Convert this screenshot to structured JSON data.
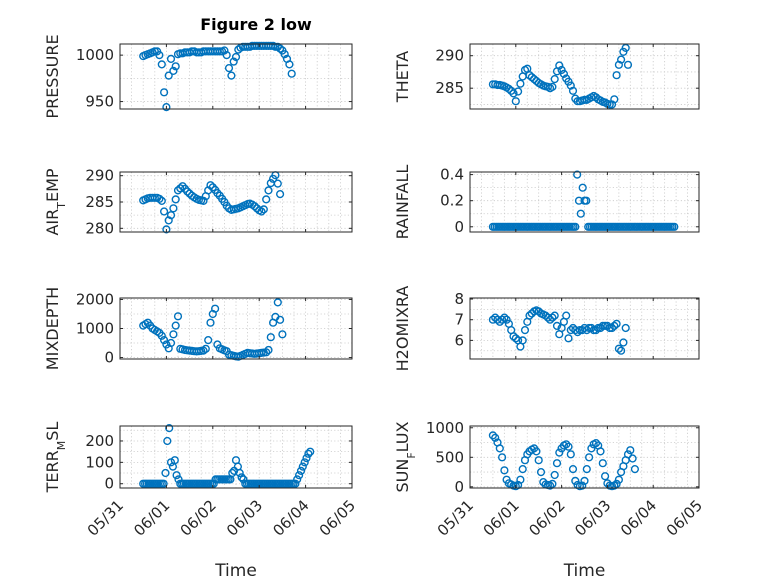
{
  "figure": {
    "title": "Figure 2 low",
    "x_axis_label": "Time",
    "x_tick_labels": [
      "05/31",
      "06/01",
      "06/02",
      "06/03",
      "06/04",
      "06/05"
    ],
    "marker_color": "#0072BD"
  },
  "chart_data": [
    {
      "type": "scatter",
      "ylabel": "PRESSURE",
      "ylim": [
        942,
        1012
      ],
      "yticks": [
        950,
        1000
      ],
      "grid": true,
      "x_base": 0.5,
      "x_step": 0.05,
      "values": [
        999,
        1000,
        1001,
        1002,
        1003,
        1004,
        1004,
        1000,
        990,
        960,
        944,
        978,
        996,
        983,
        988,
        1001,
        1002,
        1002,
        1003,
        1003,
        1003,
        1004,
        1004,
        1003,
        1003,
        1003,
        1004,
        1004,
        1004,
        1004,
        1004,
        1004,
        1004,
        1004,
        1004,
        1005,
        1000,
        986,
        978,
        993,
        998,
        1006,
        1008,
        1009,
        1009,
        1009,
        1009,
        1010,
        1010,
        1010,
        1010,
        1010,
        1010,
        1010,
        1010,
        1010,
        1010,
        1009,
        1009,
        1007,
        1005,
        1001,
        996,
        990,
        980
      ]
    },
    {
      "type": "scatter",
      "ylabel": "THETA",
      "ylim": [
        281.8,
        291.8
      ],
      "yticks": [
        285,
        290
      ],
      "grid": true,
      "x_base": 0.5,
      "x_step": 0.05,
      "values": [
        285.6,
        285.6,
        285.5,
        285.5,
        285.4,
        285.3,
        285.1,
        284.9,
        284.6,
        284.2,
        283.0,
        284.5,
        285.7,
        286.8,
        287.8,
        288.0,
        287.0,
        286.7,
        286.4,
        286.1,
        285.8,
        285.6,
        285.4,
        285.3,
        285.2,
        285.0,
        285.2,
        286.4,
        287.6,
        288.5,
        287.8,
        287.2,
        286.5,
        286.0,
        285.4,
        284.6,
        283.4,
        283.0,
        283.0,
        283.1,
        283.2,
        283.2,
        283.4,
        283.6,
        283.8,
        283.6,
        283.3,
        283.1,
        282.9,
        282.8,
        282.6,
        282.5,
        282.5,
        283.3,
        287.0,
        288.6,
        289.4,
        290.6,
        291.2,
        288.6
      ]
    },
    {
      "type": "scatter",
      "ylabel": "AIR_TEMP",
      "ylim": [
        279.3,
        290.7
      ],
      "yticks": [
        280,
        285,
        290
      ],
      "grid": true,
      "x_base": 0.5,
      "x_step": 0.05,
      "values": [
        285.3,
        285.5,
        285.7,
        285.8,
        285.8,
        285.8,
        285.8,
        285.6,
        285.2,
        283.2,
        279.8,
        281.5,
        282.5,
        283.8,
        285.5,
        287.2,
        287.6,
        288.0,
        287.5,
        287.0,
        286.6,
        286.2,
        285.9,
        285.6,
        285.4,
        285.3,
        285.2,
        286.1,
        287.2,
        288.2,
        287.8,
        287.3,
        286.7,
        286.2,
        285.6,
        285.0,
        284.3,
        283.8,
        283.5,
        283.6,
        283.7,
        283.8,
        284.0,
        284.2,
        284.4,
        284.6,
        284.7,
        284.5,
        284.2,
        283.8,
        283.4,
        283.2,
        283.6,
        285.5,
        287.2,
        288.6,
        289.4,
        290.1,
        288.5,
        286.5
      ]
    },
    {
      "type": "scatter",
      "ylabel": "RAINFALL",
      "ylim": [
        -0.04,
        0.42
      ],
      "yticks": [
        0,
        0.2,
        0.4
      ],
      "grid": true,
      "x_base": 0.5,
      "x_step": 0.04,
      "values": [
        0,
        0,
        0,
        0,
        0,
        0,
        0,
        0,
        0,
        0,
        0,
        0,
        0,
        0,
        0,
        0,
        0,
        0,
        0,
        0,
        0,
        0,
        0,
        0,
        0,
        0,
        0,
        0,
        0,
        0,
        0,
        0,
        0,
        0,
        0,
        0,
        0,
        0,
        0,
        0,
        0,
        0,
        0,
        0,
        0,
        0,
        0.4,
        0.2,
        0.1,
        0.3,
        0.2,
        0.2,
        0,
        0,
        0,
        0,
        0,
        0,
        0,
        0,
        0,
        0,
        0,
        0,
        0,
        0,
        0,
        0,
        0,
        0,
        0,
        0,
        0,
        0,
        0,
        0,
        0,
        0,
        0,
        0,
        0,
        0,
        0,
        0,
        0,
        0,
        0,
        0,
        0,
        0,
        0,
        0,
        0,
        0,
        0,
        0,
        0,
        0,
        0,
        0
      ]
    },
    {
      "type": "scatter",
      "ylabel": "MIXDEPTH",
      "ylim": [
        -50,
        2050
      ],
      "yticks": [
        0,
        1000,
        2000
      ],
      "grid": true,
      "x_base": 0.5,
      "x_step": 0.05,
      "values": [
        1100,
        1150,
        1200,
        1100,
        1000,
        950,
        900,
        850,
        750,
        600,
        450,
        320,
        500,
        800,
        1100,
        1420,
        300,
        280,
        260,
        250,
        240,
        230,
        220,
        210,
        220,
        230,
        240,
        300,
        600,
        1200,
        1500,
        1680,
        450,
        320,
        280,
        250,
        220,
        100,
        80,
        60,
        40,
        30,
        60,
        90,
        130,
        160,
        150,
        140,
        130,
        140,
        150,
        160,
        170,
        180,
        260,
        700,
        1200,
        1400,
        1900,
        1300,
        800
      ]
    },
    {
      "type": "scatter",
      "ylabel": "H2OMIXRA",
      "ylim": [
        5.1,
        8.05
      ],
      "yticks": [
        6,
        7,
        8
      ],
      "grid": true,
      "x_base": 0.5,
      "x_step": 0.05,
      "values": [
        7.0,
        7.1,
        7.0,
        6.9,
        7.0,
        7.1,
        7.0,
        6.8,
        6.5,
        6.2,
        6.1,
        6.0,
        5.7,
        6.0,
        6.5,
        6.9,
        7.2,
        7.3,
        7.4,
        7.45,
        7.4,
        7.3,
        7.25,
        7.2,
        7.1,
        7.0,
        7.1,
        7.2,
        6.7,
        6.3,
        6.6,
        6.9,
        7.2,
        6.1,
        6.5,
        6.6,
        6.5,
        6.4,
        6.5,
        6.5,
        6.6,
        6.5,
        6.6,
        6.6,
        6.5,
        6.5,
        6.6,
        6.6,
        6.7,
        6.7,
        6.7,
        6.6,
        6.6,
        6.7,
        6.8,
        5.6,
        5.5,
        5.9,
        6.6
      ]
    },
    {
      "type": "scatter",
      "ylabel": "TERR_MSL",
      "ylim": [
        -20,
        270
      ],
      "yticks": [
        0,
        100,
        200
      ],
      "grid": true,
      "x_base": 0.5,
      "x_step": 0.04,
      "values": [
        0,
        0,
        0,
        0,
        0,
        0,
        0,
        0,
        0,
        0,
        0,
        0,
        50,
        200,
        260,
        100,
        80,
        110,
        40,
        20,
        0,
        0,
        0,
        0,
        0,
        0,
        0,
        0,
        0,
        0,
        0,
        0,
        0,
        0,
        0,
        0,
        0,
        0,
        0,
        20,
        20,
        20,
        20,
        20,
        20,
        20,
        20,
        20,
        50,
        60,
        110,
        80,
        50,
        30,
        20,
        0,
        0,
        0,
        0,
        0,
        0,
        0,
        0,
        0,
        0,
        0,
        0,
        0,
        0,
        0,
        0,
        0,
        0,
        0,
        0,
        0,
        0,
        0,
        0,
        0,
        0,
        0,
        0,
        20,
        40,
        60,
        80,
        100,
        120,
        140,
        150
      ]
    },
    {
      "type": "scatter",
      "ylabel": "SUN_FLUX",
      "ylim": [
        -20,
        1030
      ],
      "yticks": [
        0,
        500,
        1000
      ],
      "grid": true,
      "x_base": 0.5,
      "x_step": 0.05,
      "values": [
        870,
        830,
        750,
        650,
        500,
        280,
        120,
        60,
        40,
        20,
        10,
        30,
        120,
        300,
        450,
        550,
        600,
        630,
        650,
        600,
        450,
        250,
        80,
        40,
        30,
        20,
        50,
        200,
        400,
        580,
        650,
        700,
        720,
        680,
        550,
        300,
        100,
        30,
        10,
        20,
        100,
        300,
        500,
        650,
        720,
        740,
        700,
        600,
        400,
        180,
        60,
        20,
        10,
        20,
        50,
        120,
        250,
        350,
        450,
        550,
        620,
        480,
        300
      ]
    }
  ]
}
